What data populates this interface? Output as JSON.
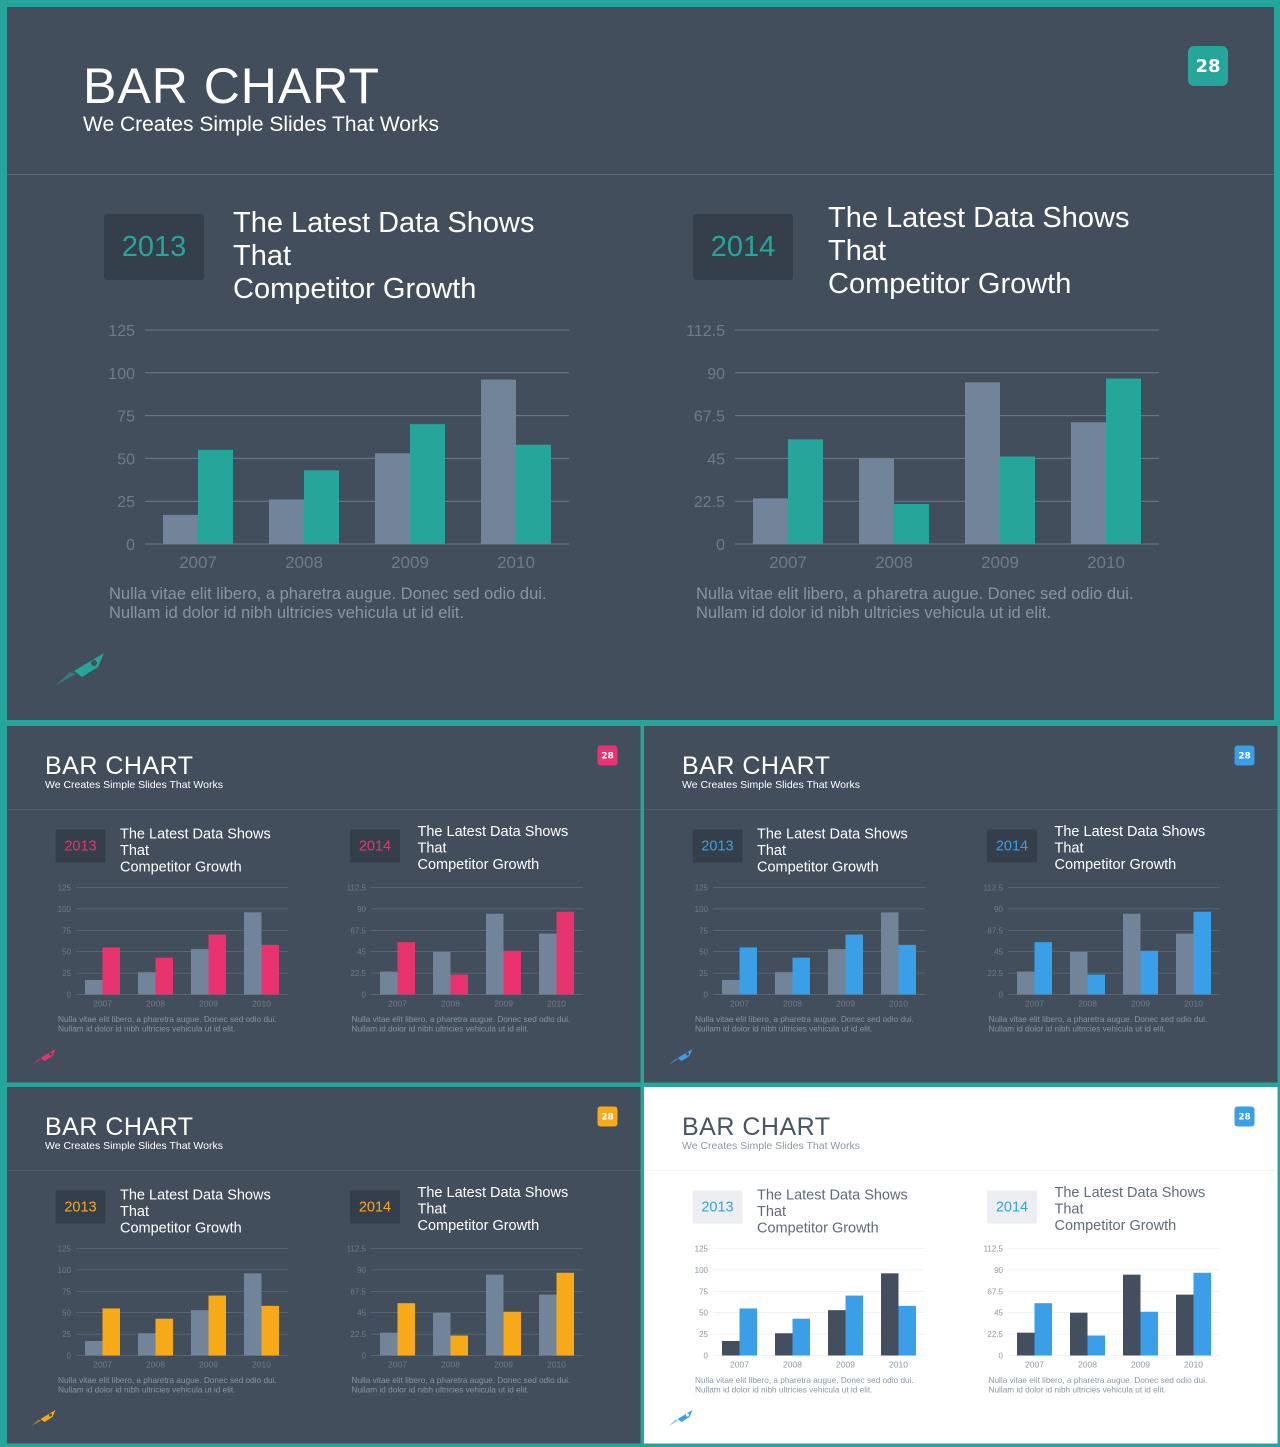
{
  "slide": {
    "title": "BAR CHART",
    "subtitle": "We Creates Simple Slides That Works",
    "page_number": "28",
    "caption_line1": "Nulla vitae elit libero, a pharetra augue. Donec sed odio dui.",
    "caption_line2": "Nullam id dolor id nibh ultricies vehicula ut id elit.",
    "headline_line1": "The Latest Data Shows That",
    "headline_line2": "Competitor Growth",
    "icon": "rocket-icon"
  },
  "variants": [
    {
      "name": "teal",
      "theme": "dark",
      "accent": "#26a69a",
      "other_bar": "#72849a"
    },
    {
      "name": "pink",
      "theme": "dark",
      "accent": "#e8336e",
      "other_bar": "#72849a"
    },
    {
      "name": "blue",
      "theme": "dark",
      "accent": "#3a9fe6",
      "other_bar": "#72849a"
    },
    {
      "name": "orange",
      "theme": "dark",
      "accent": "#f8a917",
      "other_bar": "#72849a"
    },
    {
      "name": "blue-light",
      "theme": "light",
      "accent": "#3a9fe6",
      "other_bar": "#434f5f"
    }
  ],
  "chart_data": [
    {
      "type": "bar",
      "title": "2013",
      "categories": [
        "2007",
        "2008",
        "2009",
        "2010"
      ],
      "series": [
        {
          "values": [
            17,
            26,
            53,
            96
          ]
        },
        {
          "values": [
            55,
            43,
            70,
            58
          ]
        }
      ],
      "ylim": [
        0,
        125
      ],
      "yticks": [
        "0",
        "25",
        "50",
        "75",
        "100",
        "125"
      ],
      "grid": true
    },
    {
      "type": "bar",
      "title": "2014",
      "categories": [
        "2007",
        "2008",
        "2009",
        "2010"
      ],
      "series": [
        {
          "values": [
            24,
            45,
            85,
            64
          ]
        },
        {
          "values": [
            55,
            21,
            46,
            87
          ]
        }
      ],
      "ylim": [
        0,
        112.5
      ],
      "yticks": [
        "0",
        "22.5",
        "45",
        "67.5",
        "90",
        "112.5"
      ],
      "grid": true
    }
  ]
}
